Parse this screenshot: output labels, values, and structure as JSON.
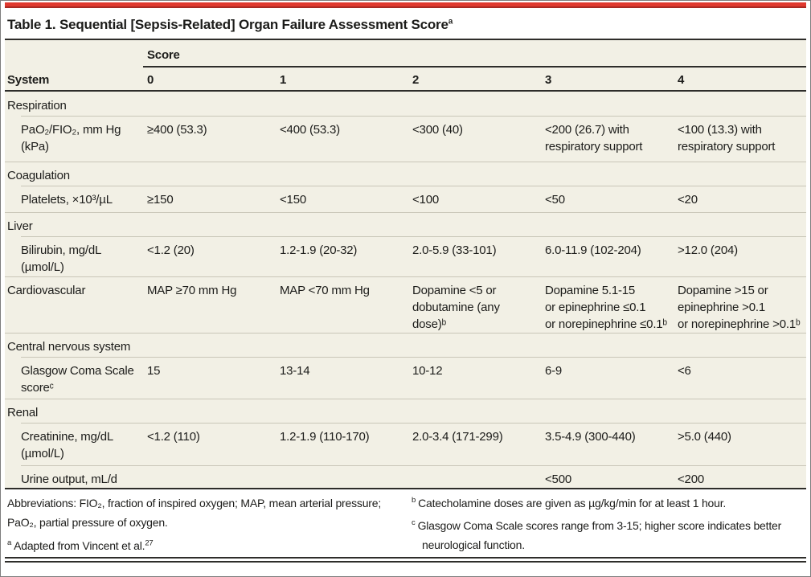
{
  "title": {
    "label": "Table 1. Sequential [Sepsis-Related] Organ Failure Assessment Score",
    "footnote_marker": "a"
  },
  "colors": {
    "accent_red_bar": "#e0392f",
    "table_background": "#f2f0e5",
    "dark_rule": "#2e2d2a",
    "light_rule": "#c9c6b8"
  },
  "table": {
    "spanner_label": "Score",
    "columns": [
      "System",
      "0",
      "1",
      "2",
      "3",
      "4"
    ],
    "rows": [
      {
        "label": "Respiration",
        "cells": [
          "",
          "",
          "",
          "",
          ""
        ]
      },
      {
        "label": "PaO₂/FIO₂, mm Hg\n(kPa)",
        "cells": [
          "≥400 (53.3)",
          "<400 (53.3)",
          "<300 (40)",
          "<200 (26.7) with\nrespiratory support",
          "<100 (13.3) with\nrespiratory support"
        ]
      },
      {
        "label": "Coagulation",
        "cells": [
          "",
          "",
          "",
          "",
          ""
        ]
      },
      {
        "label": "Platelets, ×10³/µL",
        "cells": [
          "≥150",
          "<150",
          "<100",
          "<50",
          "<20"
        ]
      },
      {
        "label": "Liver",
        "cells": [
          "",
          "",
          "",
          "",
          ""
        ]
      },
      {
        "label": "Bilirubin, mg/dL\n(µmol/L)",
        "cells": [
          "<1.2 (20)",
          "1.2-1.9 (20-32)",
          "2.0-5.9 (33-101)",
          "6.0-11.9 (102-204)",
          ">12.0 (204)"
        ]
      },
      {
        "label": "Cardiovascular",
        "cells": [
          "MAP ≥70 mm Hg",
          "MAP <70 mm Hg",
          "Dopamine <5 or\ndobutamine (any dose)ᵇ",
          "Dopamine 5.1-15\nor epinephrine ≤0.1\nor norepinephrine ≤0.1ᵇ",
          "Dopamine >15 or\nepinephrine >0.1\nor norepinephrine >0.1ᵇ"
        ]
      },
      {
        "label": "Central nervous system",
        "cells": [
          "",
          "",
          "",
          "",
          ""
        ]
      },
      {
        "label": "Glasgow Coma Scale\nscoreᶜ",
        "cells": [
          "15",
          "13-14",
          "10-12",
          "6-9",
          "<6"
        ]
      },
      {
        "label": "Renal",
        "cells": [
          "",
          "",
          "",
          "",
          ""
        ]
      },
      {
        "label": "Creatinine, mg/dL\n(µmol/L)",
        "cells": [
          "<1.2 (110)",
          "1.2-1.9 (110-170)",
          "2.0-3.4 (171-299)",
          "3.5-4.9 (300-440)",
          ">5.0 (440)"
        ]
      },
      {
        "label": "Urine output, mL/d",
        "cells": [
          "",
          "",
          "",
          "<500",
          "<200"
        ]
      }
    ]
  },
  "footnotes": {
    "abbreviations": "Abbreviations: FIO₂, fraction of inspired oxygen; MAP, mean arterial pressure;\nPaO₂, partial pressure of oxygen.",
    "a": {
      "marker": "a",
      "text": "Adapted from Vincent et al.",
      "citation_sup": "27"
    },
    "b": {
      "marker": "b",
      "text": "Catecholamine doses are given as µg/kg/min for at least 1 hour."
    },
    "c": {
      "marker": "c",
      "text": "Glasgow Coma Scale scores range from 3-15; higher score indicates better\nneurological function."
    }
  }
}
